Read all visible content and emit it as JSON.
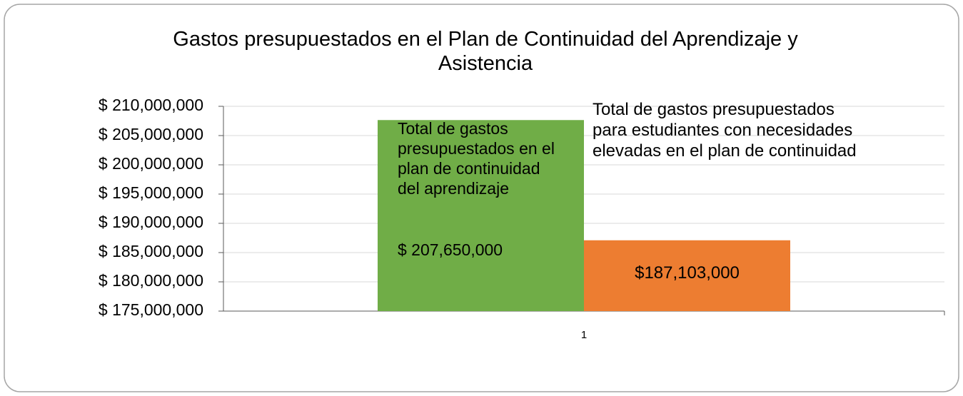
{
  "chart_data": {
    "type": "bar",
    "title": "Gastos presupuestados en el Plan de Continuidad del Aprendizaje y Asistencia",
    "categories": [
      "1"
    ],
    "series": [
      {
        "name": "Total de gastos presupuestados en el plan de continuidad del aprendizaje",
        "color": "#70ad47",
        "values": [
          207650000
        ],
        "value_labels": [
          "$ 207,650,000"
        ]
      },
      {
        "name": "Total de gastos presupuestados para estudiantes con necesidades elevadas en el plan de continuidad",
        "color": "#ed7d31",
        "values": [
          187103000
        ],
        "value_labels": [
          "$187,103,000"
        ]
      }
    ],
    "ylim": [
      175000000,
      210000000
    ],
    "yticks": [
      {
        "value": 175000000,
        "label": "$ 175,000,000"
      },
      {
        "value": 180000000,
        "label": "$ 180,000,000"
      },
      {
        "value": 185000000,
        "label": "$ 185,000,000"
      },
      {
        "value": 190000000,
        "label": "$ 190,000,000"
      },
      {
        "value": 195000000,
        "label": "$ 195,000,000"
      },
      {
        "value": 200000000,
        "label": "$ 200,000,000"
      },
      {
        "value": 205000000,
        "label": "$ 205,000,000"
      },
      {
        "value": 210000000,
        "label": "$ 210,000,000"
      }
    ],
    "grid": true
  }
}
